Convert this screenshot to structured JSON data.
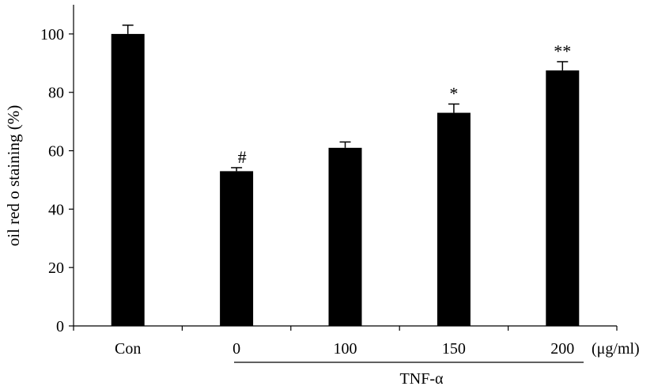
{
  "chart_data": {
    "type": "bar",
    "categories": [
      "Con",
      "0",
      "100",
      "150",
      "200"
    ],
    "values": [
      100,
      53,
      61,
      73,
      87.5
    ],
    "errors": [
      3,
      1.2,
      2,
      3,
      3
    ],
    "annotations": [
      "",
      "#",
      "",
      "*",
      "**"
    ],
    "title": "",
    "xlabel": "",
    "ylabel": "oil red o staining (%)",
    "ylim": [
      0,
      110
    ],
    "yticks": [
      0,
      20,
      40,
      60,
      80,
      100
    ],
    "x_unit": "(μg/ml)",
    "group_label": "TNF-α",
    "grid": false,
    "legend": "none",
    "bar_color": "#000000"
  }
}
